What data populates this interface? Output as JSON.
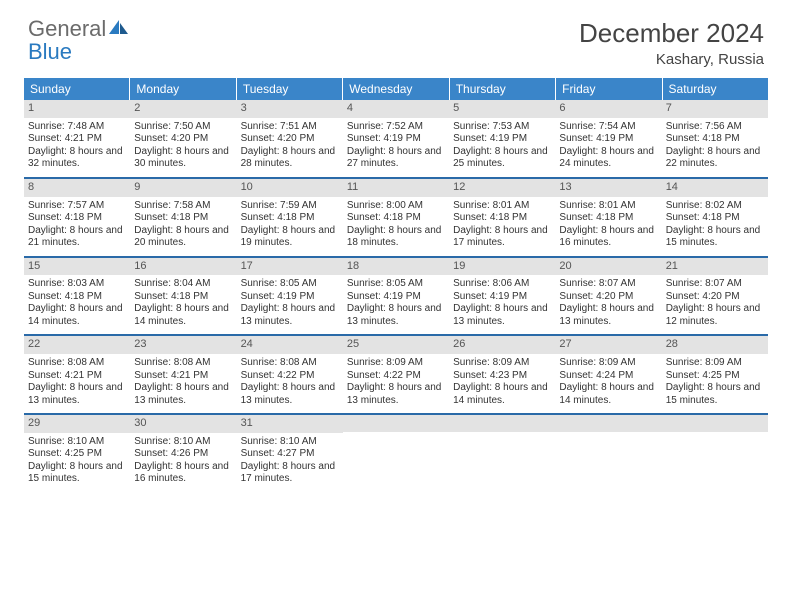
{
  "logo": {
    "text_gray": "General",
    "text_blue": "Blue"
  },
  "title": "December 2024",
  "location": "Kashary, Russia",
  "colors": {
    "header_bg": "#3a85c9",
    "row_border": "#2a6aa8",
    "daynum_bg": "#e3e3e3",
    "logo_gray": "#6b6b6b",
    "logo_blue": "#2a7ac0",
    "text": "#333333",
    "background": "#ffffff"
  },
  "typography": {
    "title_fontsize": 26,
    "location_fontsize": 15,
    "dayhead_fontsize": 12,
    "daynum_fontsize": 11,
    "cell_fontsize": 10
  },
  "day_headers": [
    "Sunday",
    "Monday",
    "Tuesday",
    "Wednesday",
    "Thursday",
    "Friday",
    "Saturday"
  ],
  "weeks": [
    [
      {
        "n": "1",
        "sr": "7:48 AM",
        "ss": "4:21 PM",
        "dl": "8 hours and 32 minutes."
      },
      {
        "n": "2",
        "sr": "7:50 AM",
        "ss": "4:20 PM",
        "dl": "8 hours and 30 minutes."
      },
      {
        "n": "3",
        "sr": "7:51 AM",
        "ss": "4:20 PM",
        "dl": "8 hours and 28 minutes."
      },
      {
        "n": "4",
        "sr": "7:52 AM",
        "ss": "4:19 PM",
        "dl": "8 hours and 27 minutes."
      },
      {
        "n": "5",
        "sr": "7:53 AM",
        "ss": "4:19 PM",
        "dl": "8 hours and 25 minutes."
      },
      {
        "n": "6",
        "sr": "7:54 AM",
        "ss": "4:19 PM",
        "dl": "8 hours and 24 minutes."
      },
      {
        "n": "7",
        "sr": "7:56 AM",
        "ss": "4:18 PM",
        "dl": "8 hours and 22 minutes."
      }
    ],
    [
      {
        "n": "8",
        "sr": "7:57 AM",
        "ss": "4:18 PM",
        "dl": "8 hours and 21 minutes."
      },
      {
        "n": "9",
        "sr": "7:58 AM",
        "ss": "4:18 PM",
        "dl": "8 hours and 20 minutes."
      },
      {
        "n": "10",
        "sr": "7:59 AM",
        "ss": "4:18 PM",
        "dl": "8 hours and 19 minutes."
      },
      {
        "n": "11",
        "sr": "8:00 AM",
        "ss": "4:18 PM",
        "dl": "8 hours and 18 minutes."
      },
      {
        "n": "12",
        "sr": "8:01 AM",
        "ss": "4:18 PM",
        "dl": "8 hours and 17 minutes."
      },
      {
        "n": "13",
        "sr": "8:01 AM",
        "ss": "4:18 PM",
        "dl": "8 hours and 16 minutes."
      },
      {
        "n": "14",
        "sr": "8:02 AM",
        "ss": "4:18 PM",
        "dl": "8 hours and 15 minutes."
      }
    ],
    [
      {
        "n": "15",
        "sr": "8:03 AM",
        "ss": "4:18 PM",
        "dl": "8 hours and 14 minutes."
      },
      {
        "n": "16",
        "sr": "8:04 AM",
        "ss": "4:18 PM",
        "dl": "8 hours and 14 minutes."
      },
      {
        "n": "17",
        "sr": "8:05 AM",
        "ss": "4:19 PM",
        "dl": "8 hours and 13 minutes."
      },
      {
        "n": "18",
        "sr": "8:05 AM",
        "ss": "4:19 PM",
        "dl": "8 hours and 13 minutes."
      },
      {
        "n": "19",
        "sr": "8:06 AM",
        "ss": "4:19 PM",
        "dl": "8 hours and 13 minutes."
      },
      {
        "n": "20",
        "sr": "8:07 AM",
        "ss": "4:20 PM",
        "dl": "8 hours and 13 minutes."
      },
      {
        "n": "21",
        "sr": "8:07 AM",
        "ss": "4:20 PM",
        "dl": "8 hours and 12 minutes."
      }
    ],
    [
      {
        "n": "22",
        "sr": "8:08 AM",
        "ss": "4:21 PM",
        "dl": "8 hours and 13 minutes."
      },
      {
        "n": "23",
        "sr": "8:08 AM",
        "ss": "4:21 PM",
        "dl": "8 hours and 13 minutes."
      },
      {
        "n": "24",
        "sr": "8:08 AM",
        "ss": "4:22 PM",
        "dl": "8 hours and 13 minutes."
      },
      {
        "n": "25",
        "sr": "8:09 AM",
        "ss": "4:22 PM",
        "dl": "8 hours and 13 minutes."
      },
      {
        "n": "26",
        "sr": "8:09 AM",
        "ss": "4:23 PM",
        "dl": "8 hours and 14 minutes."
      },
      {
        "n": "27",
        "sr": "8:09 AM",
        "ss": "4:24 PM",
        "dl": "8 hours and 14 minutes."
      },
      {
        "n": "28",
        "sr": "8:09 AM",
        "ss": "4:25 PM",
        "dl": "8 hours and 15 minutes."
      }
    ],
    [
      {
        "n": "29",
        "sr": "8:10 AM",
        "ss": "4:25 PM",
        "dl": "8 hours and 15 minutes."
      },
      {
        "n": "30",
        "sr": "8:10 AM",
        "ss": "4:26 PM",
        "dl": "8 hours and 16 minutes."
      },
      {
        "n": "31",
        "sr": "8:10 AM",
        "ss": "4:27 PM",
        "dl": "8 hours and 17 minutes."
      },
      null,
      null,
      null,
      null
    ]
  ],
  "labels": {
    "sunrise": "Sunrise:",
    "sunset": "Sunset:",
    "daylight": "Daylight:"
  }
}
